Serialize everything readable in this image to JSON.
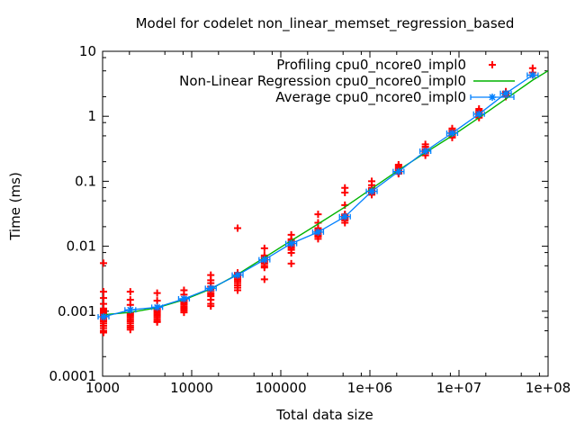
{
  "chart_data": {
    "type": "scatter",
    "title": "Model for codelet non_linear_memset_regression_based",
    "xlabel": "Total data size",
    "ylabel": "Time (ms)",
    "grid": false,
    "legend_position": "top-right-inside",
    "x_axis": {
      "scale": "log",
      "range": [
        1000,
        100000000
      ],
      "ticks": [
        {
          "v": 1000,
          "label": "1000"
        },
        {
          "v": 10000,
          "label": "10000"
        },
        {
          "v": 100000,
          "label": "100000"
        },
        {
          "v": 1000000,
          "label": "1e+06"
        },
        {
          "v": 10000000,
          "label": "1e+07"
        },
        {
          "v": 100000000,
          "label": "1e+08"
        }
      ],
      "minor_tick_multiples": [
        2,
        5,
        8
      ]
    },
    "y_axis": {
      "scale": "log",
      "range": [
        0.0001,
        10
      ],
      "ticks": [
        {
          "v": 10,
          "label": "10"
        },
        {
          "v": 1,
          "label": "1"
        },
        {
          "v": 0.1,
          "label": "0.1"
        },
        {
          "v": 0.01,
          "label": "0.01"
        },
        {
          "v": 0.001,
          "label": "0.001"
        },
        {
          "v": 0.0001,
          "label": "0.0001"
        }
      ],
      "minor_tick_multiples": [
        2,
        5,
        8
      ]
    },
    "colors": {
      "profiling": "#ff0000",
      "regression": "#00b400",
      "average": "#0080ff",
      "axis": "#000000"
    },
    "legend": [
      {
        "label": "Profiling cpu0_ncore0_impl0",
        "style": "points",
        "marker": "plus",
        "color": "#ff0000"
      },
      {
        "label": "Non-Linear Regression cpu0_ncore0_impl0",
        "style": "line",
        "color": "#00b400"
      },
      {
        "label": "Average cpu0_ncore0_impl0",
        "style": "errorbar-line",
        "marker": "star",
        "color": "#0080ff"
      }
    ],
    "series": [
      {
        "name": "Profiling cpu0_ncore0_impl0",
        "type": "scatter",
        "marker": "plus",
        "color": "#ff0000",
        "groups": [
          {
            "x": 1024,
            "values": [
              0.0055,
              0.002,
              0.0016,
              0.0013,
              0.0011,
              0.00105,
              0.001,
              0.00095,
              0.0009,
              0.00085,
              0.0008,
              0.00075,
              0.0007,
              0.00065,
              0.0006,
              0.00055,
              0.0005,
              0.00047
            ]
          },
          {
            "x": 2048,
            "values": [
              0.002,
              0.0015,
              0.00125,
              0.00095,
              0.0009,
              0.00085,
              0.0008,
              0.00075,
              0.0007,
              0.00065,
              0.0006,
              0.00056,
              0.00052
            ]
          },
          {
            "x": 4096,
            "values": [
              0.0019,
              0.00145,
              0.0011,
              0.00105,
              0.001,
              0.00095,
              0.0009,
              0.00085,
              0.0008,
              0.00075,
              0.0007,
              0.00068
            ]
          },
          {
            "x": 8192,
            "values": [
              0.0021,
              0.0018,
              0.0015,
              0.00142,
              0.00135,
              0.00128,
              0.0012,
              0.00114,
              0.00108,
              0.00102,
              0.00096
            ]
          },
          {
            "x": 16384,
            "values": [
              0.0036,
              0.003,
              0.0027,
              0.0024,
              0.0022,
              0.00205,
              0.0019,
              0.0018,
              0.0017,
              0.0015,
              0.0013,
              0.0012
            ]
          },
          {
            "x": 32768,
            "values": [
              0.019,
              0.0039,
              0.0037,
              0.0035,
              0.0033,
              0.0031,
              0.0029,
              0.0027,
              0.0025,
              0.0023,
              0.0021
            ]
          },
          {
            "x": 65536,
            "values": [
              0.0093,
              0.0072,
              0.0068,
              0.0064,
              0.006,
              0.0057,
              0.0054,
              0.005,
              0.0047,
              0.0031
            ]
          },
          {
            "x": 131072,
            "values": [
              0.015,
              0.0128,
              0.012,
              0.0113,
              0.0106,
              0.01,
              0.0094,
              0.0088,
              0.0079,
              0.0054
            ]
          },
          {
            "x": 262144,
            "values": [
              0.031,
              0.023,
              0.019,
              0.018,
              0.017,
              0.016,
              0.015,
              0.0145,
              0.014,
              0.013
            ]
          },
          {
            "x": 524288,
            "values": [
              0.079,
              0.067,
              0.043,
              0.031,
              0.03,
              0.029,
              0.028,
              0.027,
              0.026,
              0.025,
              0.023
            ]
          },
          {
            "x": 1048576,
            "values": [
              0.1,
              0.087,
              0.079,
              0.076,
              0.073,
              0.07,
              0.067,
              0.064,
              0.062
            ]
          },
          {
            "x": 2097152,
            "values": [
              0.18,
              0.17,
              0.16,
              0.152,
              0.146,
              0.14,
              0.135,
              0.13
            ]
          },
          {
            "x": 4194304,
            "values": [
              0.37,
              0.34,
              0.315,
              0.3,
              0.29,
              0.28,
              0.27,
              0.25
            ]
          },
          {
            "x": 8388608,
            "values": [
              0.65,
              0.61,
              0.57,
              0.54,
              0.52,
              0.5,
              0.47
            ]
          },
          {
            "x": 16777216,
            "values": [
              1.3,
              1.22,
              1.15,
              1.1,
              1.05,
              1.0,
              0.95
            ]
          },
          {
            "x": 33554432,
            "values": [
              2.4,
              2.3,
              2.2,
              2.1,
              2.0
            ]
          },
          {
            "x": 67108864,
            "values": [
              5.5,
              4.7,
              4.3
            ]
          }
        ]
      },
      {
        "name": "Non-Linear Regression cpu0_ncore0_impl0",
        "type": "line",
        "color": "#00b400",
        "points": [
          [
            1000,
            0.00088
          ],
          [
            2048,
            0.00096
          ],
          [
            4096,
            0.00113
          ],
          [
            8192,
            0.0015
          ],
          [
            16384,
            0.0022
          ],
          [
            32768,
            0.0037
          ],
          [
            65536,
            0.0067
          ],
          [
            131072,
            0.0122
          ],
          [
            262144,
            0.022
          ],
          [
            524288,
            0.04
          ],
          [
            1048576,
            0.077
          ],
          [
            2097152,
            0.148
          ],
          [
            4194304,
            0.275
          ],
          [
            8388608,
            0.5
          ],
          [
            16777216,
            0.95
          ],
          [
            33554432,
            1.85
          ],
          [
            67108864,
            3.6
          ],
          [
            100000000,
            5.0
          ]
        ]
      },
      {
        "name": "Average cpu0_ncore0_impl0",
        "type": "line-markers-errorbars",
        "marker": "star",
        "color": "#0080ff",
        "points": [
          [
            1024,
            0.00082
          ],
          [
            2048,
            0.00105
          ],
          [
            4096,
            0.00115
          ],
          [
            8192,
            0.00155
          ],
          [
            16384,
            0.00225
          ],
          [
            32768,
            0.0036
          ],
          [
            65536,
            0.0062
          ],
          [
            131072,
            0.011
          ],
          [
            262144,
            0.0165
          ],
          [
            524288,
            0.0285
          ],
          [
            1048576,
            0.07
          ],
          [
            2097152,
            0.141
          ],
          [
            4194304,
            0.29
          ],
          [
            8388608,
            0.55
          ],
          [
            16777216,
            1.08
          ],
          [
            33554432,
            2.25
          ],
          [
            67108864,
            4.3
          ]
        ]
      }
    ]
  }
}
